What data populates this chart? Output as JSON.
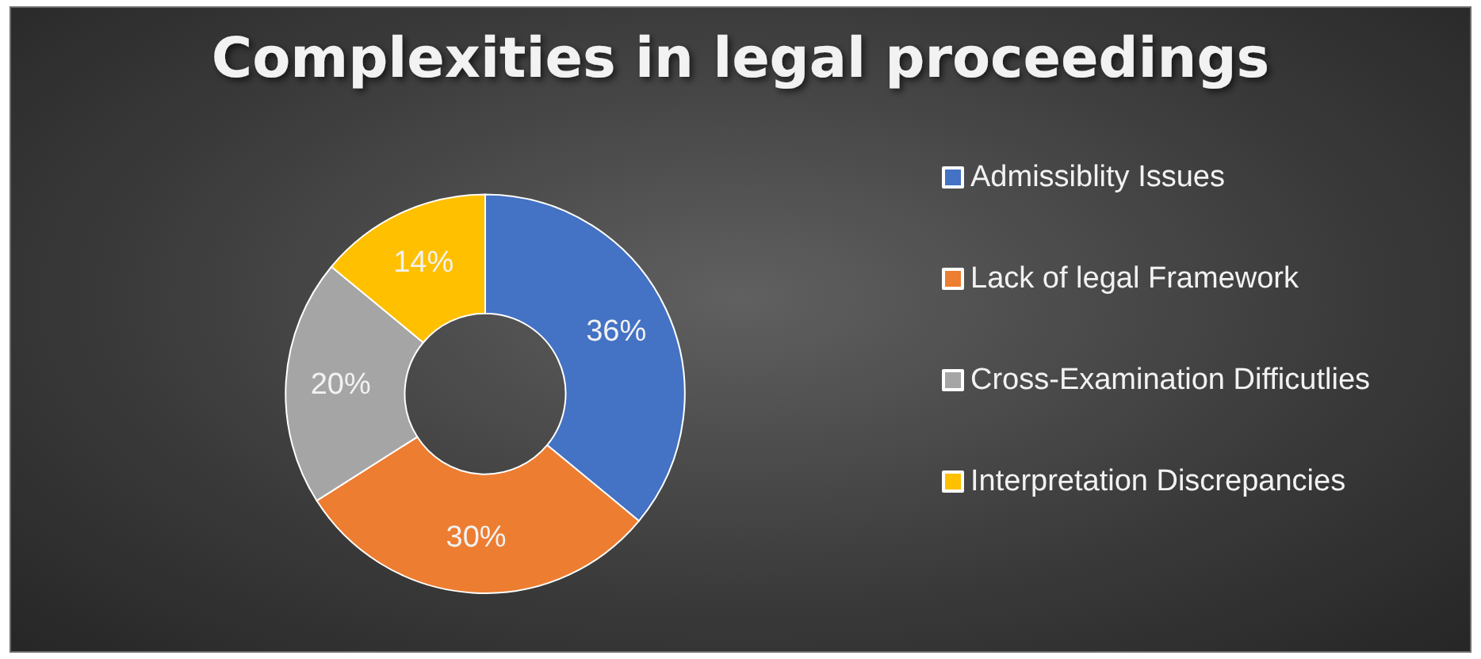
{
  "chart_data": {
    "type": "donut",
    "title": "Complexities in legal proceedings",
    "categories": [
      "Admissiblity Issues",
      "Lack of legal Framework",
      "Cross-Examination Difficutlies",
      "Interpretation Discrepancies"
    ],
    "values": [
      36,
      30,
      20,
      14
    ],
    "colors": [
      "#4472c4",
      "#ed7d31",
      "#a5a5a5",
      "#ffc000"
    ],
    "value_labels": [
      "36%",
      "30%",
      "20%",
      "14%"
    ],
    "legend": "right"
  }
}
